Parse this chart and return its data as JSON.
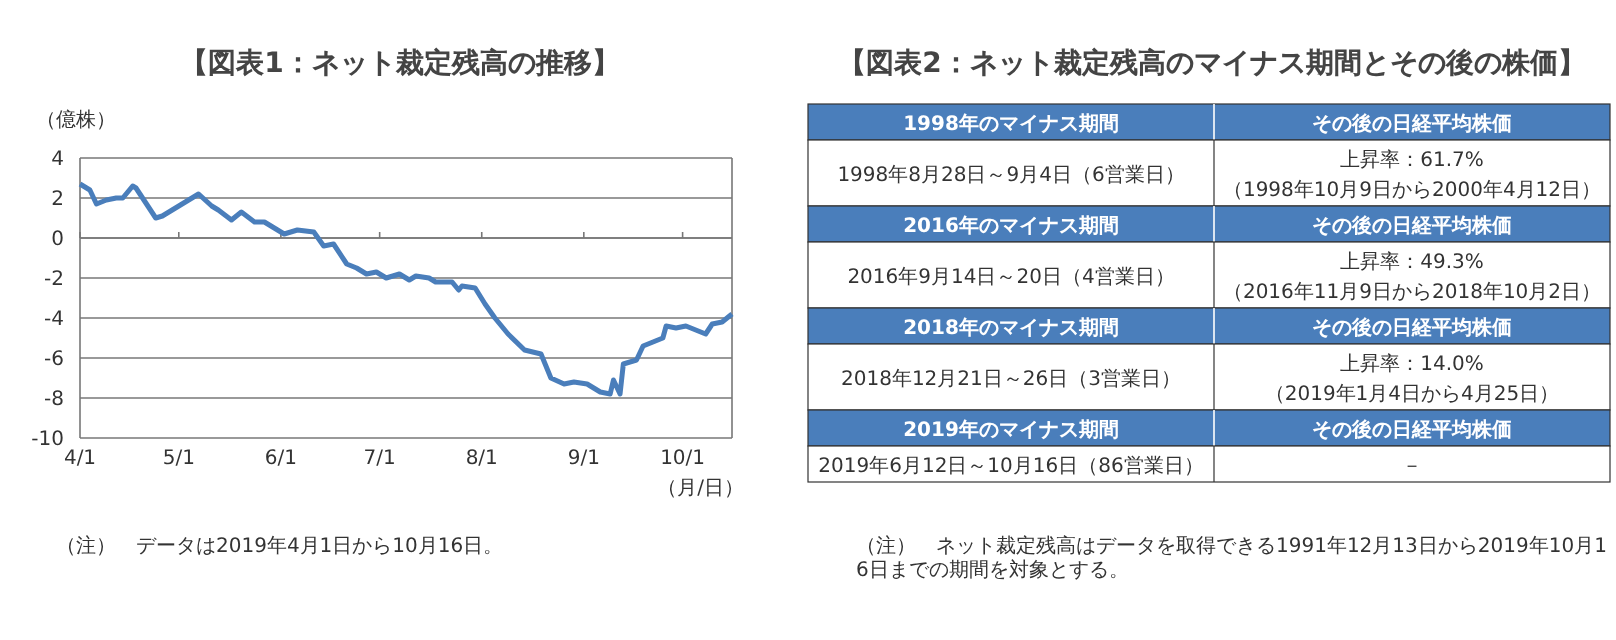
{
  "chart_data": [
    {
      "type": "line",
      "title": "【図表1：ネット裁定残高の推移】",
      "ylabel": "（億株）",
      "xlabel": "（月/日）",
      "xlim": [
        "2019-04-01",
        "2019-10-16"
      ],
      "xticks": [
        {
          "value": "2019-04-01",
          "label": "4/1"
        },
        {
          "value": "2019-05-01",
          "label": "5/1"
        },
        {
          "value": "2019-06-01",
          "label": "6/1"
        },
        {
          "value": "2019-07-01",
          "label": "7/1"
        },
        {
          "value": "2019-08-01",
          "label": "8/1"
        },
        {
          "value": "2019-09-01",
          "label": "9/1"
        },
        {
          "value": "2019-10-01",
          "label": "10/1"
        }
      ],
      "ylim": [
        -10,
        4
      ],
      "yticks": [
        -10,
        -8,
        -6,
        -4,
        -2,
        0,
        2,
        4
      ],
      "grid": "y",
      "annotations": [
        "（注）　データは2019年4月1日から10月16日。"
      ],
      "x": [
        "2019-04-01",
        "2019-04-04",
        "2019-04-06",
        "2019-04-09",
        "2019-04-12",
        "2019-04-14",
        "2019-04-17",
        "2019-04-18",
        "2019-04-24",
        "2019-04-26",
        "2019-05-07",
        "2019-05-11",
        "2019-05-13",
        "2019-05-17",
        "2019-05-20",
        "2019-05-24",
        "2019-05-27",
        "2019-06-02",
        "2019-06-06",
        "2019-06-11",
        "2019-06-14",
        "2019-06-17",
        "2019-06-21",
        "2019-06-24",
        "2019-06-27",
        "2019-06-30",
        "2019-07-03",
        "2019-07-07",
        "2019-07-10",
        "2019-07-12",
        "2019-07-16",
        "2019-07-18",
        "2019-07-23",
        "2019-07-25",
        "2019-07-26",
        "2019-07-30",
        "2019-08-02",
        "2019-08-05",
        "2019-08-09",
        "2019-08-14",
        "2019-08-19",
        "2019-08-22",
        "2019-08-26",
        "2019-08-29",
        "2019-09-02",
        "2019-09-06",
        "2019-09-09",
        "2019-09-10",
        "2019-09-12",
        "2019-09-13",
        "2019-09-17",
        "2019-09-19",
        "2019-09-22",
        "2019-09-25",
        "2019-09-26",
        "2019-09-29",
        "2019-10-02",
        "2019-10-08",
        "2019-10-10",
        "2019-10-13",
        "2019-10-16"
      ],
      "series": [
        {
          "color": "#4a7ebb",
          "values": [
            2.7,
            2.4,
            1.7,
            1.9,
            2.0,
            2.0,
            2.6,
            2.5,
            1.0,
            1.1,
            2.2,
            1.6,
            1.4,
            0.9,
            1.3,
            0.8,
            0.8,
            0.2,
            0.4,
            0.3,
            -0.4,
            -0.3,
            -1.3,
            -1.5,
            -1.8,
            -1.7,
            -2.0,
            -1.8,
            -2.1,
            -1.9,
            -2.0,
            -2.2,
            -2.2,
            -2.6,
            -2.4,
            -2.5,
            -3.3,
            -4.0,
            -4.8,
            -5.6,
            -5.8,
            -7.0,
            -7.3,
            -7.2,
            -7.3,
            -7.7,
            -7.8,
            -7.1,
            -7.8,
            -6.3,
            -6.1,
            -5.4,
            -5.2,
            -5.0,
            -4.4,
            -4.5,
            -4.4,
            -4.8,
            -4.3,
            -4.2,
            -3.8
          ]
        }
      ]
    },
    {
      "type": "other",
      "title": "【図表2：ネット裁定残高のマイナス期間とその後の株価】",
      "annotations": [
        "1998年のマイナス期間",
        "その後の日経平均株価",
        "1998年8月28日～9月4日（6営業日）",
        "上昇率：61.7%",
        "（1998年10月9日から2000年4月12日）",
        "2016年のマイナス期間",
        "その後の日経平均株価",
        "2016年9月14日～20日（4営業日）",
        "上昇率：49.3%",
        "（2016年11月9日から2018年10月2日）",
        "2018年のマイナス期間",
        "その後の日経平均株価",
        "2018年12月21日～26日（3営業日）",
        "上昇率：14.0%",
        "（2019年1月4日から4月25日）",
        "2019年のマイナス期間",
        "その後の日経平均株価",
        "2019年6月12日～10月16日（86営業日）",
        "－",
        null,
        "（注）　ネット裁定残高はデータを取得できる1991年12月13日から2019年10月16日までの期間を対象とする。"
      ]
    }
  ]
}
